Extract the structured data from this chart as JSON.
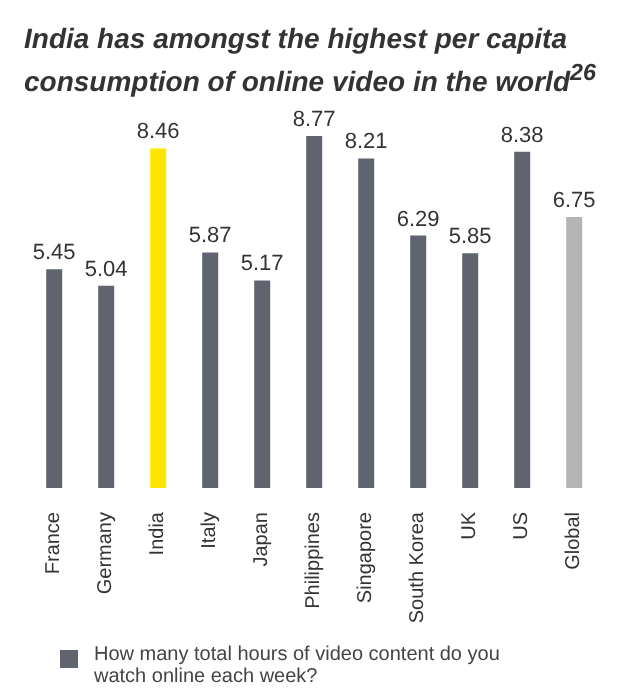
{
  "chart_data": {
    "type": "bar",
    "title": "India has amongst the highest per capita consumption of online video in the world$^{26}$",
    "categories": [
      "France",
      "Germany",
      "India",
      "Italy",
      "Japan",
      "Philippines",
      "Singapore",
      "South Korea",
      "UK",
      "US",
      "Global"
    ],
    "series": [
      {
        "name": "How many total hours of video content do you watch online each week?",
        "color": "#5f6470",
        "colors": [
          "#5f6470",
          "#5f6470",
          "#ffe600",
          "#5f6470",
          "#5f6470",
          "#5f6470",
          "#5f6470",
          "#5f6470",
          "#5f6470",
          "#5f6470",
          "#b4b4b4"
        ],
        "values": [
          5.45,
          5.04,
          8.46,
          5.87,
          5.17,
          8.77,
          8.21,
          6.29,
          5.85,
          8.38,
          6.75
        ]
      }
    ],
    "data_labels": true,
    "grid": false,
    "legend": "bottom"
  }
}
